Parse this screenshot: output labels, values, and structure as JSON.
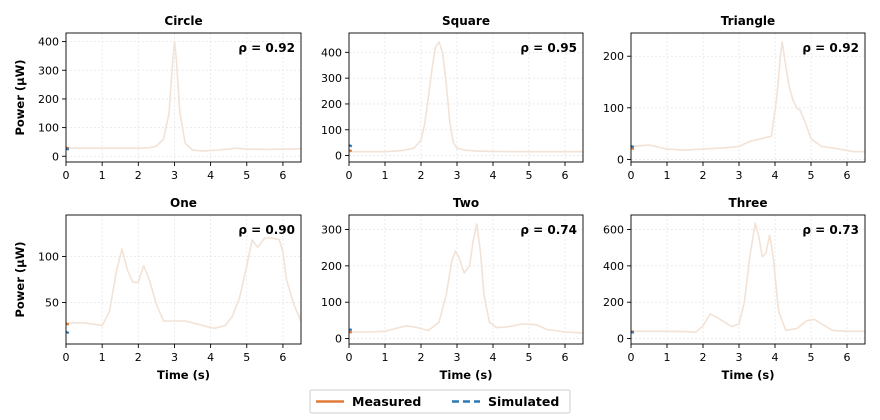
{
  "colors": {
    "measured": "#e07b39",
    "measured_faint": "#f3e2d6",
    "simulated": "#2f78b4",
    "grid": "#e6e6e6"
  },
  "legend": {
    "measured_label": "Measured",
    "simulated_label": "Simulated",
    "placement": "bottom-center"
  },
  "chart_data": [
    {
      "type": "line",
      "title": "Circle",
      "annotation": "ρ = 0.92",
      "ylabel": "Power (μW)",
      "xlabel": "",
      "xlim": [
        0,
        6.5
      ],
      "ylim": [
        -20,
        430
      ],
      "xticks": [
        0,
        1,
        2,
        3,
        4,
        5,
        6
      ],
      "yticks": [
        0,
        100,
        200,
        300,
        400
      ],
      "grid": true,
      "series": [
        {
          "name": "Measured",
          "style": "faint-solid",
          "x": [
            0,
            0.5,
            1,
            1.5,
            2,
            2.3,
            2.5,
            2.7,
            2.85,
            2.95,
            3.0,
            3.05,
            3.15,
            3.3,
            3.5,
            3.8,
            4.0,
            4.2,
            4.5,
            4.7,
            5.0,
            5.5,
            6.0,
            6.5
          ],
          "y": [
            28,
            28,
            28,
            28,
            28,
            30,
            35,
            60,
            150,
            330,
            400,
            340,
            150,
            45,
            22,
            18,
            20,
            22,
            25,
            28,
            25,
            24,
            25,
            26
          ]
        },
        {
          "name": "Measured",
          "style": "solid",
          "x": [
            0,
            0.08
          ],
          "y": [
            30,
            28
          ]
        },
        {
          "name": "Simulated",
          "style": "dashed",
          "x": [
            0,
            0.08
          ],
          "y": [
            26,
            24
          ]
        }
      ]
    },
    {
      "type": "line",
      "title": "Square",
      "annotation": "ρ = 0.95",
      "ylabel": "",
      "xlabel": "",
      "xlim": [
        0,
        6.5
      ],
      "ylim": [
        -25,
        475
      ],
      "xticks": [
        0,
        1,
        2,
        3,
        4,
        5,
        6
      ],
      "yticks": [
        0,
        100,
        200,
        300,
        400
      ],
      "grid": true,
      "series": [
        {
          "name": "Measured",
          "style": "faint-solid",
          "x": [
            0,
            1,
            1.5,
            1.8,
            2.0,
            2.1,
            2.2,
            2.3,
            2.4,
            2.5,
            2.6,
            2.7,
            2.8,
            2.9,
            3.0,
            3.2,
            3.5,
            4.0,
            5.0,
            6.0,
            6.5
          ],
          "y": [
            15,
            15,
            20,
            28,
            60,
            120,
            220,
            330,
            420,
            440,
            400,
            280,
            130,
            50,
            28,
            22,
            18,
            16,
            15,
            15,
            15
          ]
        },
        {
          "name": "Measured",
          "style": "solid",
          "x": [
            0,
            0.08
          ],
          "y": [
            20,
            18
          ]
        },
        {
          "name": "Simulated",
          "style": "dashed",
          "x": [
            0,
            0.08
          ],
          "y": [
            40,
            36
          ]
        }
      ]
    },
    {
      "type": "line",
      "title": "Triangle",
      "annotation": "ρ = 0.92",
      "ylabel": "",
      "xlabel": "",
      "xlim": [
        0,
        6.5
      ],
      "ylim": [
        -5,
        245
      ],
      "xticks": [
        0,
        1,
        2,
        3,
        4,
        5,
        6
      ],
      "yticks": [
        0,
        100,
        200
      ],
      "grid": true,
      "series": [
        {
          "name": "Measured",
          "style": "faint-solid",
          "x": [
            0,
            0.5,
            1,
            1.5,
            2,
            2.5,
            3,
            3.3,
            3.6,
            3.9,
            4.05,
            4.15,
            4.2,
            4.3,
            4.4,
            4.5,
            4.6,
            4.7,
            4.85,
            5.0,
            5.3,
            5.8,
            6.2,
            6.5
          ],
          "y": [
            25,
            28,
            20,
            18,
            20,
            22,
            25,
            35,
            40,
            45,
            120,
            200,
            228,
            180,
            140,
            115,
            100,
            95,
            70,
            40,
            25,
            20,
            15,
            15
          ]
        },
        {
          "name": "Measured",
          "style": "solid",
          "x": [
            0,
            0.08
          ],
          "y": [
            22,
            20
          ]
        },
        {
          "name": "Simulated",
          "style": "dashed",
          "x": [
            0,
            0.08
          ],
          "y": [
            26,
            24
          ]
        }
      ]
    },
    {
      "type": "line",
      "title": "One",
      "annotation": "ρ = 0.90",
      "ylabel": "Power (μW)",
      "xlabel": "Time (s)",
      "xlim": [
        0,
        6.5
      ],
      "ylim": [
        5,
        145
      ],
      "xticks": [
        0,
        1,
        2,
        3,
        4,
        5,
        6
      ],
      "yticks": [
        50,
        100
      ],
      "grid": true,
      "series": [
        {
          "name": "Measured",
          "style": "faint-solid",
          "x": [
            0,
            0.5,
            1.0,
            1.2,
            1.4,
            1.55,
            1.7,
            1.85,
            2.0,
            2.15,
            2.3,
            2.5,
            2.7,
            3.0,
            3.3,
            3.5,
            3.8,
            4.1,
            4.4,
            4.6,
            4.8,
            5.0,
            5.15,
            5.3,
            5.5,
            5.7,
            5.9,
            6.0,
            6.1,
            6.3,
            6.5
          ],
          "y": [
            28,
            28,
            25,
            40,
            85,
            108,
            85,
            72,
            72,
            90,
            75,
            48,
            30,
            30,
            30,
            28,
            25,
            22,
            25,
            35,
            55,
            90,
            118,
            110,
            120,
            120,
            118,
            105,
            75,
            48,
            30
          ]
        },
        {
          "name": "Measured",
          "style": "solid",
          "x": [
            0,
            0.08
          ],
          "y": [
            27,
            26
          ]
        },
        {
          "name": "Simulated",
          "style": "dashed",
          "x": [
            0,
            0.08
          ],
          "y": [
            18,
            17
          ]
        }
      ]
    },
    {
      "type": "line",
      "title": "Two",
      "annotation": "ρ = 0.74",
      "ylabel": "",
      "xlabel": "Time (s)",
      "xlim": [
        0,
        6.5
      ],
      "ylim": [
        -15,
        340
      ],
      "xticks": [
        0,
        1,
        2,
        3,
        4,
        5,
        6
      ],
      "yticks": [
        0,
        100,
        200,
        300
      ],
      "grid": true,
      "series": [
        {
          "name": "Measured",
          "style": "faint-solid",
          "x": [
            0,
            0.5,
            1.0,
            1.3,
            1.6,
            1.9,
            2.2,
            2.5,
            2.7,
            2.85,
            2.95,
            3.05,
            3.2,
            3.35,
            3.45,
            3.55,
            3.65,
            3.75,
            3.9,
            4.1,
            4.4,
            4.8,
            5.2,
            5.5,
            6.0,
            6.5
          ],
          "y": [
            18,
            18,
            20,
            28,
            35,
            30,
            22,
            45,
            120,
            210,
            240,
            225,
            180,
            200,
            270,
            315,
            240,
            120,
            45,
            30,
            32,
            40,
            38,
            25,
            18,
            15
          ]
        },
        {
          "name": "Measured",
          "style": "solid",
          "x": [
            0,
            0.08
          ],
          "y": [
            18,
            17
          ]
        },
        {
          "name": "Simulated",
          "style": "dashed",
          "x": [
            0,
            0.08
          ],
          "y": [
            25,
            24
          ]
        }
      ]
    },
    {
      "type": "line",
      "title": "Three",
      "annotation": "ρ = 0.73",
      "ylabel": "",
      "xlabel": "Time (s)",
      "xlim": [
        0,
        6.5
      ],
      "ylim": [
        -30,
        680
      ],
      "xticks": [
        0,
        1,
        2,
        3,
        4,
        5,
        6
      ],
      "yticks": [
        0,
        200,
        400,
        600
      ],
      "grid": true,
      "series": [
        {
          "name": "Measured",
          "style": "faint-solid",
          "x": [
            0,
            0.5,
            1.0,
            1.5,
            1.8,
            2.0,
            2.2,
            2.4,
            2.6,
            2.8,
            3.0,
            3.15,
            3.3,
            3.45,
            3.55,
            3.65,
            3.75,
            3.85,
            3.95,
            4.1,
            4.3,
            4.6,
            4.9,
            5.1,
            5.3,
            5.6,
            6.0,
            6.5
          ],
          "y": [
            40,
            40,
            40,
            38,
            35,
            70,
            135,
            115,
            90,
            65,
            80,
            200,
            450,
            635,
            560,
            450,
            470,
            570,
            450,
            150,
            45,
            55,
            100,
            105,
            80,
            45,
            40,
            40
          ]
        },
        {
          "name": "Measured",
          "style": "solid",
          "x": [
            0,
            0.08
          ],
          "y": [
            40,
            38
          ]
        },
        {
          "name": "Simulated",
          "style": "dashed",
          "x": [
            0,
            0.08
          ],
          "y": [
            35,
            33
          ]
        }
      ]
    }
  ]
}
